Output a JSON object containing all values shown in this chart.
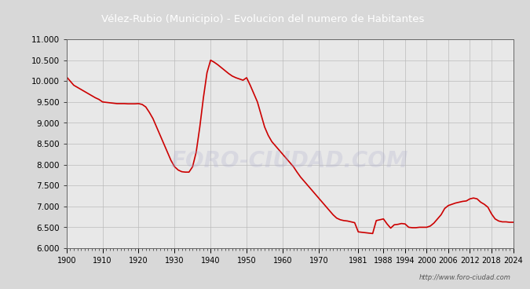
{
  "title": "Vélez-Rubio (Municipio) - Evolucion del numero de Habitantes",
  "title_bg": "#4a86c8",
  "title_color": "#ffffff",
  "watermark": "http://www.foro-ciudad.com",
  "line_color": "#cc0000",
  "outer_bg": "#d8d8d8",
  "plot_bg": "#e8e8e8",
  "ylim": [
    6000,
    11000
  ],
  "ytick_step": 500,
  "x_ticks": [
    1900,
    1910,
    1920,
    1930,
    1940,
    1950,
    1960,
    1970,
    1981,
    1988,
    1994,
    2000,
    2006,
    2012,
    2018,
    2024
  ],
  "data": [
    [
      1900,
      10100
    ],
    [
      1901,
      10000
    ],
    [
      1902,
      9900
    ],
    [
      1903,
      9850
    ],
    [
      1904,
      9800
    ],
    [
      1905,
      9750
    ],
    [
      1906,
      9700
    ],
    [
      1907,
      9650
    ],
    [
      1908,
      9600
    ],
    [
      1909,
      9560
    ],
    [
      1910,
      9500
    ],
    [
      1911,
      9490
    ],
    [
      1912,
      9480
    ],
    [
      1913,
      9470
    ],
    [
      1914,
      9460
    ],
    [
      1915,
      9460
    ],
    [
      1916,
      9460
    ],
    [
      1917,
      9455
    ],
    [
      1918,
      9455
    ],
    [
      1919,
      9455
    ],
    [
      1920,
      9460
    ],
    [
      1921,
      9440
    ],
    [
      1922,
      9380
    ],
    [
      1923,
      9250
    ],
    [
      1924,
      9100
    ],
    [
      1925,
      8900
    ],
    [
      1926,
      8700
    ],
    [
      1927,
      8500
    ],
    [
      1928,
      8300
    ],
    [
      1929,
      8100
    ],
    [
      1930,
      7950
    ],
    [
      1931,
      7870
    ],
    [
      1932,
      7830
    ],
    [
      1933,
      7820
    ],
    [
      1934,
      7820
    ],
    [
      1935,
      7950
    ],
    [
      1936,
      8300
    ],
    [
      1937,
      8900
    ],
    [
      1938,
      9600
    ],
    [
      1939,
      10200
    ],
    [
      1940,
      10500
    ],
    [
      1941,
      10450
    ],
    [
      1942,
      10390
    ],
    [
      1943,
      10320
    ],
    [
      1944,
      10250
    ],
    [
      1945,
      10180
    ],
    [
      1946,
      10120
    ],
    [
      1947,
      10080
    ],
    [
      1948,
      10050
    ],
    [
      1949,
      10020
    ],
    [
      1950,
      10080
    ],
    [
      1951,
      9900
    ],
    [
      1952,
      9700
    ],
    [
      1953,
      9500
    ],
    [
      1954,
      9200
    ],
    [
      1955,
      8900
    ],
    [
      1956,
      8700
    ],
    [
      1957,
      8550
    ],
    [
      1958,
      8450
    ],
    [
      1959,
      8350
    ],
    [
      1960,
      8250
    ],
    [
      1961,
      8150
    ],
    [
      1962,
      8050
    ],
    [
      1963,
      7950
    ],
    [
      1964,
      7820
    ],
    [
      1965,
      7700
    ],
    [
      1966,
      7600
    ],
    [
      1967,
      7500
    ],
    [
      1968,
      7400
    ],
    [
      1969,
      7300
    ],
    [
      1970,
      7200
    ],
    [
      1971,
      7100
    ],
    [
      1972,
      7000
    ],
    [
      1973,
      6900
    ],
    [
      1974,
      6800
    ],
    [
      1975,
      6720
    ],
    [
      1976,
      6680
    ],
    [
      1977,
      6660
    ],
    [
      1978,
      6650
    ],
    [
      1979,
      6630
    ],
    [
      1980,
      6610
    ],
    [
      1981,
      6390
    ],
    [
      1982,
      6380
    ],
    [
      1983,
      6370
    ],
    [
      1984,
      6360
    ],
    [
      1985,
      6350
    ],
    [
      1986,
      6660
    ],
    [
      1987,
      6680
    ],
    [
      1988,
      6700
    ],
    [
      1989,
      6580
    ],
    [
      1990,
      6480
    ],
    [
      1991,
      6560
    ],
    [
      1992,
      6570
    ],
    [
      1993,
      6590
    ],
    [
      1994,
      6580
    ],
    [
      1995,
      6500
    ],
    [
      1996,
      6490
    ],
    [
      1997,
      6490
    ],
    [
      1998,
      6500
    ],
    [
      1999,
      6500
    ],
    [
      2000,
      6500
    ],
    [
      2001,
      6530
    ],
    [
      2002,
      6600
    ],
    [
      2003,
      6700
    ],
    [
      2004,
      6800
    ],
    [
      2005,
      6950
    ],
    [
      2006,
      7020
    ],
    [
      2007,
      7050
    ],
    [
      2008,
      7080
    ],
    [
      2009,
      7100
    ],
    [
      2010,
      7120
    ],
    [
      2011,
      7130
    ],
    [
      2012,
      7180
    ],
    [
      2013,
      7200
    ],
    [
      2014,
      7180
    ],
    [
      2015,
      7100
    ],
    [
      2016,
      7050
    ],
    [
      2017,
      6980
    ],
    [
      2018,
      6820
    ],
    [
      2019,
      6700
    ],
    [
      2020,
      6650
    ],
    [
      2021,
      6630
    ],
    [
      2022,
      6630
    ],
    [
      2023,
      6620
    ],
    [
      2024,
      6620
    ]
  ]
}
